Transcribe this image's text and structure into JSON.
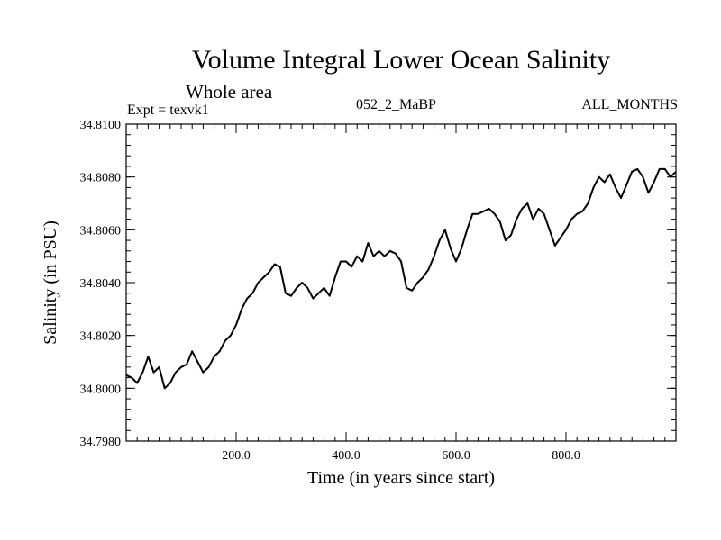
{
  "header": {
    "title": "Volume Integral Lower Ocean Salinity",
    "subtitle": "Whole area",
    "experiment": "Expt = texvk1",
    "run_id": "052_2_MaBP",
    "period": "ALL_MONTHS"
  },
  "chart_data": {
    "type": "line",
    "title": "Volume Integral Lower Ocean Salinity",
    "xlabel": "Time (in years since start)",
    "ylabel": "Salinity (in PSU)",
    "xlim": [
      0,
      1000
    ],
    "ylim": [
      34.798,
      34.81
    ],
    "xticks": [
      200,
      400,
      600,
      800
    ],
    "xtick_labels": [
      "200.0",
      "400.0",
      "600.0",
      "800.0"
    ],
    "yticks": [
      34.798,
      34.8,
      34.802,
      34.804,
      34.806,
      34.808,
      34.81
    ],
    "ytick_labels": [
      "34.7980",
      "34.8000",
      "34.8020",
      "34.8040",
      "34.8060",
      "34.8080",
      "34.8100"
    ],
    "grid": false,
    "series": [
      {
        "name": "Salinity",
        "x": [
          0,
          10,
          20,
          30,
          40,
          50,
          60,
          70,
          80,
          90,
          100,
          110,
          120,
          130,
          140,
          150,
          160,
          170,
          180,
          190,
          200,
          210,
          220,
          230,
          240,
          250,
          260,
          270,
          280,
          290,
          300,
          310,
          320,
          330,
          340,
          350,
          360,
          370,
          380,
          390,
          400,
          410,
          420,
          430,
          440,
          450,
          460,
          470,
          480,
          490,
          500,
          510,
          520,
          530,
          540,
          550,
          560,
          570,
          580,
          590,
          600,
          610,
          620,
          630,
          640,
          650,
          660,
          670,
          680,
          690,
          700,
          710,
          720,
          730,
          740,
          750,
          760,
          770,
          780,
          790,
          800,
          810,
          820,
          830,
          840,
          850,
          860,
          870,
          880,
          890,
          900,
          910,
          920,
          930,
          940,
          950,
          960,
          970,
          980,
          990,
          1000
        ],
        "values": [
          34.8005,
          34.8004,
          34.8002,
          34.8006,
          34.8012,
          34.8006,
          34.8008,
          34.8,
          34.8002,
          34.8006,
          34.8008,
          34.8009,
          34.8014,
          34.801,
          34.8006,
          34.8008,
          34.8012,
          34.8014,
          34.8018,
          34.802,
          34.8024,
          34.803,
          34.8034,
          34.8036,
          34.804,
          34.8042,
          34.8044,
          34.8047,
          34.8046,
          34.8036,
          34.8035,
          34.8038,
          34.804,
          34.8038,
          34.8034,
          34.8036,
          34.8038,
          34.8035,
          34.8042,
          34.8048,
          34.8048,
          34.8046,
          34.805,
          34.8048,
          34.8055,
          34.805,
          34.8052,
          34.805,
          34.8052,
          34.8051,
          34.8048,
          34.8038,
          34.8037,
          34.804,
          34.8042,
          34.8045,
          34.805,
          34.8056,
          34.806,
          34.8053,
          34.8048,
          34.8053,
          34.806,
          34.8066,
          34.8066,
          34.8067,
          34.8068,
          34.8066,
          34.8063,
          34.8056,
          34.8058,
          34.8064,
          34.8068,
          34.807,
          34.8064,
          34.8068,
          34.8066,
          34.806,
          34.8054,
          34.8057,
          34.806,
          34.8064,
          34.8066,
          34.8067,
          34.807,
          34.8076,
          34.808,
          34.8078,
          34.8081,
          34.8076,
          34.8072,
          34.8077,
          34.8082,
          34.8083,
          34.808,
          34.8074,
          34.8078,
          34.8083,
          34.8083,
          34.808,
          34.8082
        ]
      }
    ]
  }
}
